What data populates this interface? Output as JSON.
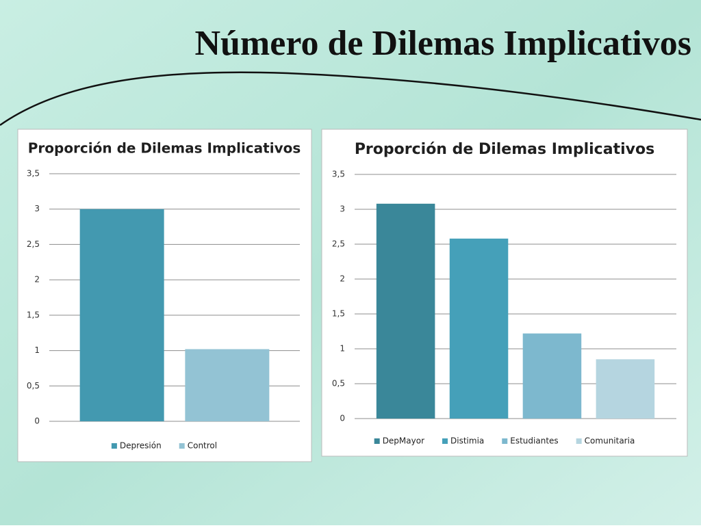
{
  "title": "Número de Dilemas Implicativos",
  "chart_data": [
    {
      "type": "bar",
      "title": "Proporción de Dilemas Implicativos",
      "series": [
        {
          "name": "Depresión",
          "color": "#4399b0",
          "values": [
            3.0
          ]
        },
        {
          "name": "Control",
          "color": "#93c3d4",
          "values": [
            1.02
          ]
        }
      ],
      "ylim": [
        0,
        3.5
      ],
      "yticks": [
        0,
        {
          "value": 0.5,
          "label": "0,5"
        },
        1,
        {
          "value": 1.5,
          "label": "1,5"
        },
        2,
        {
          "value": 2.5,
          "label": "2,5"
        },
        3,
        {
          "value": 3.5,
          "label": "3,5"
        }
      ],
      "grid": true,
      "legend": "bottom"
    },
    {
      "type": "bar",
      "title": "Proporción de Dilemas Implicativos",
      "series": [
        {
          "name": "DepMayor",
          "color": "#3a8799",
          "values": [
            3.08
          ]
        },
        {
          "name": "Distimia",
          "color": "#45a0b9",
          "values": [
            2.58
          ]
        },
        {
          "name": "Estudiantes",
          "color": "#7db8ce",
          "values": [
            1.22
          ]
        },
        {
          "name": "Comunitaria",
          "color": "#b5d5e0",
          "values": [
            0.85
          ]
        }
      ],
      "ylim": [
        0,
        3.5
      ],
      "yticks": [
        0,
        {
          "value": 0.5,
          "label": "0,5"
        },
        1,
        {
          "value": 1.5,
          "label": "1,5"
        },
        2,
        {
          "value": 2.5,
          "label": "2,5"
        },
        3,
        {
          "value": 3.5,
          "label": "3,5"
        }
      ],
      "grid": true,
      "legend": "bottom"
    }
  ]
}
